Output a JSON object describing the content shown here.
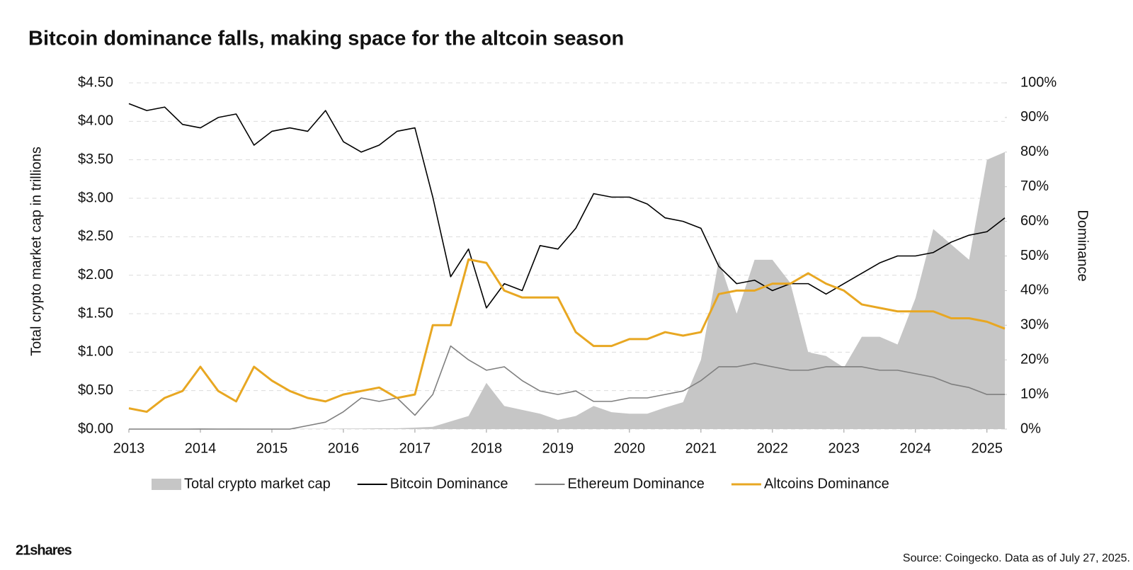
{
  "chart_data": {
    "type": "line",
    "title": "Bitcoin dominance falls, making space for the altcoin season",
    "ylabel": "Total crypto market cap in trillions",
    "y2label": "Dominance",
    "source": "Source: Coingecko. Data as of July 27, 2025.",
    "brand": "21shares",
    "xlim": [
      2013,
      2025.25
    ],
    "xticks": [
      2013,
      2014,
      2015,
      2016,
      2017,
      2018,
      2019,
      2020,
      2021,
      2022,
      2023,
      2024,
      2025
    ],
    "ylim": [
      0,
      4.5
    ],
    "yticks": [
      {
        "value": 0,
        "label": "$0.00"
      },
      {
        "value": 0.5,
        "label": "$0.50"
      },
      {
        "value": 1,
        "label": "$1.00"
      },
      {
        "value": 1.5,
        "label": "$1.50"
      },
      {
        "value": 2,
        "label": "$2.00"
      },
      {
        "value": 2.5,
        "label": "$2.50"
      },
      {
        "value": 3,
        "label": "$3.00"
      },
      {
        "value": 3.5,
        "label": "$3.50"
      },
      {
        "value": 4,
        "label": "$4.00"
      },
      {
        "value": 4.5,
        "label": "$4.50"
      }
    ],
    "y2lim": [
      0,
      100
    ],
    "y2ticks": [
      {
        "value": 0,
        "label": "0%"
      },
      {
        "value": 10,
        "label": "10%"
      },
      {
        "value": 20,
        "label": "20%"
      },
      {
        "value": 30,
        "label": "30%"
      },
      {
        "value": 40,
        "label": "40%"
      },
      {
        "value": 50,
        "label": "50%"
      },
      {
        "value": 60,
        "label": "60%"
      },
      {
        "value": 70,
        "label": "70%"
      },
      {
        "value": 80,
        "label": "80%"
      },
      {
        "value": 90,
        "label": "90%"
      },
      {
        "value": 100,
        "label": "100%"
      }
    ],
    "grid": true,
    "legend": "bottom",
    "x": [
      2013,
      2013.25,
      2013.5,
      2013.75,
      2014,
      2014.25,
      2014.5,
      2014.75,
      2015,
      2015.25,
      2015.5,
      2015.75,
      2016,
      2016.25,
      2016.5,
      2016.75,
      2017,
      2017.25,
      2017.5,
      2017.75,
      2018,
      2018.25,
      2018.5,
      2018.75,
      2019,
      2019.25,
      2019.5,
      2019.75,
      2020,
      2020.25,
      2020.5,
      2020.75,
      2021,
      2021.25,
      2021.5,
      2021.75,
      2022,
      2022.25,
      2022.5,
      2022.75,
      2023,
      2023.25,
      2023.5,
      2023.75,
      2024,
      2024.25,
      2024.5,
      2024.75,
      2025,
      2025.25
    ],
    "series": [
      {
        "name": "Total crypto market cap",
        "type": "area",
        "color": "#c6c6c6",
        "axis": "y",
        "values": [
          0.002,
          0.001,
          0.001,
          0.002,
          0.01,
          0.006,
          0.007,
          0.005,
          0.004,
          0.003,
          0.004,
          0.004,
          0.007,
          0.007,
          0.01,
          0.01,
          0.02,
          0.03,
          0.1,
          0.17,
          0.6,
          0.3,
          0.25,
          0.2,
          0.12,
          0.17,
          0.3,
          0.22,
          0.2,
          0.2,
          0.28,
          0.35,
          0.9,
          2.2,
          1.5,
          2.2,
          2.2,
          1.9,
          1.0,
          0.95,
          0.8,
          1.2,
          1.2,
          1.1,
          1.7,
          2.6,
          2.4,
          2.2,
          3.5,
          3.6
        ]
      },
      {
        "name": "Bitcoin Dominance",
        "type": "line",
        "color": "#000000",
        "axis": "y2",
        "values": [
          94,
          92,
          93,
          88,
          87,
          90,
          91,
          82,
          86,
          87,
          86,
          92,
          83,
          80,
          82,
          86,
          87,
          67,
          44,
          52,
          35,
          42,
          40,
          53,
          52,
          58,
          68,
          67,
          67,
          65,
          61,
          60,
          58,
          47,
          42,
          43,
          40,
          42,
          42,
          39,
          42,
          45,
          48,
          50,
          50,
          51,
          54,
          56,
          57,
          61
        ]
      },
      {
        "name": "Ethereum Dominance",
        "type": "line",
        "color": "#7f7f7f",
        "axis": "y2",
        "values": [
          0,
          0,
          0,
          0,
          0,
          0,
          0,
          0,
          0,
          0,
          1,
          2,
          5,
          9,
          8,
          9,
          4,
          10,
          24,
          20,
          17,
          18,
          14,
          11,
          10,
          11,
          8,
          8,
          9,
          9,
          10,
          11,
          14,
          18,
          18,
          19,
          18,
          17,
          17,
          18,
          18,
          18,
          17,
          17,
          16,
          15,
          13,
          12,
          10,
          10
        ]
      },
      {
        "name": "Altcoins Dominance",
        "type": "line",
        "color": "#e8a722",
        "axis": "y2",
        "width": 3,
        "values": [
          6,
          5,
          9,
          11,
          18,
          11,
          8,
          18,
          14,
          11,
          9,
          8,
          10,
          11,
          12,
          9,
          10,
          30,
          30,
          49,
          48,
          40,
          38,
          38,
          38,
          28,
          24,
          24,
          26,
          26,
          28,
          27,
          28,
          39,
          40,
          40,
          42,
          42,
          45,
          42,
          40,
          36,
          35,
          34,
          34,
          34,
          32,
          32,
          31,
          29
        ]
      }
    ]
  }
}
